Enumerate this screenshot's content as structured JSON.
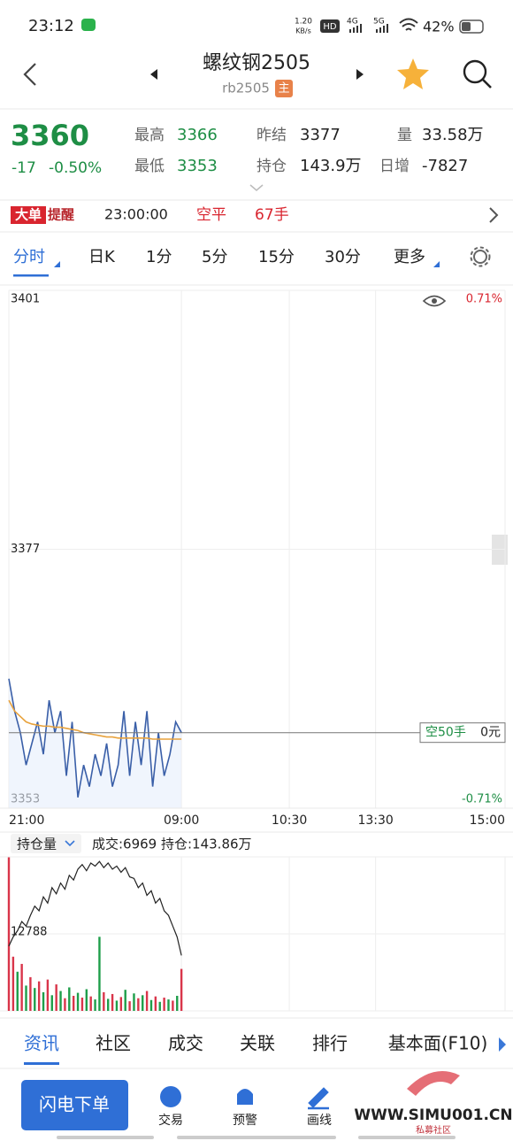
{
  "status_bar": {
    "time": "23:12",
    "net_speed": "1.20",
    "net_unit": "KB/s",
    "hd": "HD",
    "sim1": "4G",
    "sim2": "5G",
    "battery": "42%"
  },
  "header": {
    "title": "螺纹钢2505",
    "code": "rb2505",
    "badge": "主"
  },
  "quote": {
    "price": "3360",
    "change": "-17",
    "change_pct": "-0.50%",
    "fields": [
      {
        "label": "最高",
        "value": "3366"
      },
      {
        "label": "最低",
        "value": "3353"
      },
      {
        "label": "昨结",
        "value": "3377"
      },
      {
        "label": "持仓",
        "value": "143.9万"
      },
      {
        "label": "量",
        "value": "33.58万"
      },
      {
        "label": "日增",
        "value": "-7827"
      }
    ]
  },
  "alert": {
    "badge_a": "大单",
    "badge_b": "提醒",
    "time": "23:00:00",
    "action": "空平",
    "amount": "67手"
  },
  "period_tabs": [
    "分时",
    "日K",
    "1分",
    "5分",
    "15分",
    "30分",
    "更多"
  ],
  "chart_data": [
    {
      "type": "line",
      "x": [
        0,
        4,
        8,
        12,
        16,
        20,
        24,
        28,
        32,
        36,
        40,
        44,
        48,
        52,
        56,
        60,
        64,
        68,
        72,
        76,
        80,
        84,
        88,
        92,
        96,
        100,
        104,
        108,
        112,
        116,
        120
      ],
      "series": [
        {
          "name": "价格",
          "color": "#3a5fa8",
          "values": [
            3365,
            3362,
            3360,
            3357,
            3359,
            3361,
            3358,
            3363,
            3360,
            3362,
            3356,
            3361,
            3354,
            3357,
            3355,
            3358,
            3356,
            3359,
            3355,
            3357,
            3362,
            3356,
            3361,
            3357,
            3362,
            3355,
            3360,
            3356,
            3358,
            3361,
            3360
          ]
        },
        {
          "name": "均价",
          "color": "#e8a23c",
          "values": [
            3363,
            3362,
            3361.5,
            3361,
            3360.8,
            3360.7,
            3360.6,
            3360.6,
            3360.5,
            3360.5,
            3360.4,
            3360.3,
            3360.2,
            3360,
            3359.9,
            3359.8,
            3359.7,
            3359.6,
            3359.6,
            3359.5,
            3359.5,
            3359.5,
            3359.5,
            3359.5,
            3359.5,
            3359.4,
            3359.4,
            3359.4,
            3359.4,
            3359.4,
            3359.4
          ]
        }
      ],
      "xlim": [
        0,
        345
      ],
      "xticks": [
        {
          "value": 0,
          "label": "21:00"
        },
        {
          "value": 120,
          "label": "09:00"
        },
        {
          "value": 195,
          "label": "10:30"
        },
        {
          "value": 255,
          "label": "13:30"
        },
        {
          "value": 345,
          "label": "15:00"
        }
      ],
      "ylim": [
        3353,
        3401
      ],
      "yticks": [
        3353,
        3377,
        3401
      ],
      "y2lim": [
        -0.71,
        0.71
      ],
      "y2ticks": [
        {
          "value": -0.71,
          "label": "-0.71%"
        },
        {
          "value": 0.71,
          "label": "0.71%"
        }
      ],
      "grid": true,
      "price_line": {
        "value": 3360,
        "label": "空50手",
        "pnl": "0元"
      }
    },
    {
      "type": "bar",
      "selector": "持仓量",
      "info": "成交:6969 持仓:143.86万",
      "x": [
        0,
        3,
        6,
        9,
        12,
        15,
        18,
        21,
        24,
        27,
        30,
        33,
        36,
        39,
        42,
        45,
        48,
        51,
        54,
        57,
        60,
        63,
        66,
        69,
        72,
        75,
        78,
        81,
        84,
        87,
        90,
        93,
        96,
        99,
        102,
        105,
        108,
        111,
        114,
        117,
        120
      ],
      "values": [
        25500,
        9000,
        6500,
        7800,
        4200,
        5600,
        3800,
        4900,
        3100,
        5200,
        2600,
        4400,
        3300,
        2100,
        3900,
        2500,
        3000,
        2200,
        3600,
        2400,
        1900,
        12300,
        3100,
        2000,
        2800,
        1700,
        2300,
        3500,
        1600,
        2900,
        2100,
        2600,
        3300,
        1800,
        2400,
        1500,
        2200,
        1900,
        1700,
        2500,
        6969
      ],
      "bar_colors": [
        "#d9354a",
        "#d9354a",
        "#1e9e4a",
        "#d9354a",
        "#1e9e4a",
        "#d9354a",
        "#1e9e4a",
        "#d9354a",
        "#1e9e4a",
        "#d9354a",
        "#1e9e4a",
        "#d9354a",
        "#1e9e4a",
        "#d9354a",
        "#1e9e4a",
        "#d9354a",
        "#1e9e4a",
        "#d9354a",
        "#1e9e4a",
        "#d9354a",
        "#1e9e4a",
        "#1e9e4a",
        "#d9354a",
        "#1e9e4a",
        "#d9354a",
        "#1e9e4a",
        "#d9354a",
        "#1e9e4a",
        "#d9354a",
        "#1e9e4a",
        "#d9354a",
        "#1e9e4a",
        "#d9354a",
        "#1e9e4a",
        "#d9354a",
        "#1e9e4a",
        "#d9354a",
        "#1e9e4a",
        "#d9354a",
        "#1e9e4a",
        "#d9354a"
      ],
      "ylim": [
        0,
        25576
      ],
      "yticks": [
        12788
      ],
      "oi_color": "#222222",
      "oi_lim": [
        143.5,
        144.5
      ],
      "oi_values": [
        143.92,
        143.98,
        144.02,
        144.08,
        144.05,
        144.12,
        144.18,
        144.15,
        144.24,
        144.2,
        144.3,
        144.26,
        144.33,
        144.29,
        144.38,
        144.35,
        144.42,
        144.45,
        144.41,
        144.46,
        144.44,
        144.47,
        144.43,
        144.46,
        144.42,
        144.44,
        144.4,
        144.43,
        144.37,
        144.36,
        144.3,
        144.33,
        144.25,
        144.28,
        144.2,
        144.23,
        144.15,
        144.12,
        144.05,
        143.98,
        143.86
      ]
    }
  ],
  "bottom_tabs": [
    "资讯",
    "社区",
    "成交",
    "关联",
    "排行",
    "基本面(F10)"
  ],
  "bottom_bar": {
    "order_button": "闪电下单",
    "tools": [
      "交易",
      "预警",
      "画线"
    ]
  },
  "watermark": {
    "url": "WWW.SIMU001.CN",
    "name": "私募社区"
  }
}
